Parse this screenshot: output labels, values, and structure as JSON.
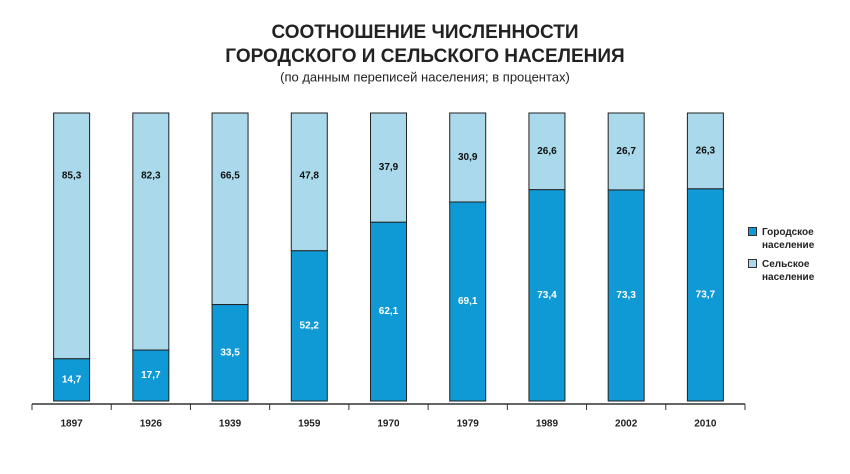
{
  "chart_data": {
    "type": "stacked-bar",
    "title": [
      "СООТНОШЕНИЕ ЧИСЛЕННОСТИ",
      "ГОРОДСКОГО И СЕЛЬСКОГО НАСЕЛЕНИЯ"
    ],
    "subtitle": "(по данным переписей населения; в процентах)",
    "categories": [
      "1897",
      "1926",
      "1939",
      "1959",
      "1970",
      "1979",
      "1989",
      "2002",
      "2010"
    ],
    "series": [
      {
        "name": "Городское население",
        "color": "#0f9ad6",
        "label_color": "#ffffff",
        "values": [
          14.7,
          17.7,
          33.5,
          52.2,
          62.1,
          69.1,
          73.4,
          73.3,
          73.7
        ],
        "value_labels": [
          "14,7",
          "17,7",
          "33,5",
          "52,2",
          "62,1",
          "69,1",
          "73,4",
          "73,3",
          "73,7"
        ]
      },
      {
        "name": "Сельское население",
        "color": "#a9d9eb",
        "label_color": "#111111",
        "values": [
          85.3,
          82.3,
          66.5,
          47.8,
          37.9,
          30.9,
          26.6,
          26.7,
          26.3
        ],
        "value_labels": [
          "85,3",
          "82,3",
          "66,5",
          "47,8",
          "37,9",
          "30,9",
          "26,6",
          "26,7",
          "26,3"
        ]
      }
    ]
  }
}
